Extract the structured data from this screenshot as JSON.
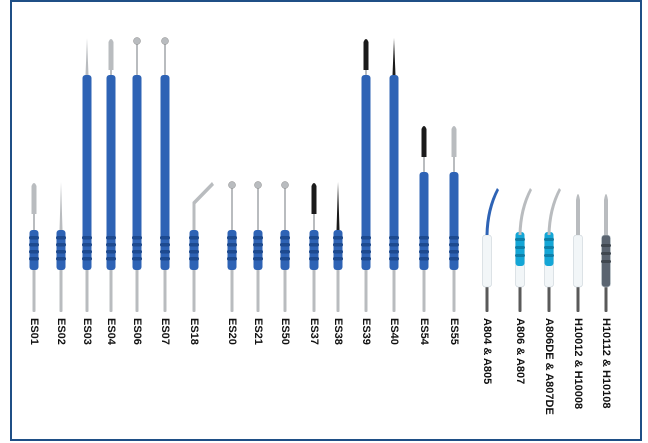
{
  "colors": {
    "border": "#1f4f86",
    "handle_blue": "#2e63b5",
    "handle_dark": "#1d4a8f",
    "shaft": "#b9bcbf",
    "tip_black": "#1b1b1b",
    "white_handle": "#f2f6f8",
    "cyan_handle": "#14a6d6",
    "gray_handle": "#5a6470"
  },
  "electrodes": [
    {
      "id": "ES01",
      "label": "ES01",
      "length": "short",
      "tip": "blade",
      "tip_color": "silver",
      "handle": "blue"
    },
    {
      "id": "ES02",
      "label": "ES02",
      "length": "short",
      "tip": "needle",
      "tip_color": "silver",
      "handle": "blue"
    },
    {
      "id": "ES03",
      "label": "ES03",
      "length": "long",
      "tip": "needle",
      "tip_color": "silver",
      "handle": "blue"
    },
    {
      "id": "ES04",
      "label": "ES04",
      "length": "long",
      "tip": "blade",
      "tip_color": "silver",
      "handle": "blue"
    },
    {
      "id": "ES06",
      "label": "ES06",
      "length": "long",
      "tip": "ball",
      "tip_color": "silver",
      "handle": "blue"
    },
    {
      "id": "ES07",
      "label": "ES07",
      "length": "long",
      "tip": "ball",
      "tip_color": "silver",
      "handle": "blue"
    },
    {
      "id": "ES18",
      "label": "ES18",
      "length": "short",
      "tip": "bent-blade",
      "tip_color": "silver",
      "handle": "blue"
    },
    {
      "id": "ES20",
      "label": "ES20",
      "length": "short",
      "tip": "ball",
      "tip_color": "silver",
      "handle": "blue"
    },
    {
      "id": "ES21",
      "label": "ES21",
      "length": "short",
      "tip": "ball",
      "tip_color": "silver",
      "handle": "blue"
    },
    {
      "id": "ES50",
      "label": "ES50",
      "length": "short",
      "tip": "ball",
      "tip_color": "silver",
      "handle": "blue"
    },
    {
      "id": "ES37",
      "label": "ES37",
      "length": "short",
      "tip": "blade",
      "tip_color": "black",
      "handle": "blue"
    },
    {
      "id": "ES38",
      "label": "ES38",
      "length": "short",
      "tip": "needle",
      "tip_color": "black",
      "handle": "blue"
    },
    {
      "id": "ES39",
      "label": "ES39",
      "length": "long",
      "tip": "blade",
      "tip_color": "black",
      "handle": "blue"
    },
    {
      "id": "ES40",
      "label": "ES40",
      "length": "long",
      "tip": "needle",
      "tip_color": "black",
      "handle": "blue"
    },
    {
      "id": "ES54",
      "label": "ES54",
      "length": "medium",
      "tip": "blade",
      "tip_color": "black",
      "handle": "blue"
    },
    {
      "id": "ES55",
      "label": "ES55",
      "length": "medium",
      "tip": "blade",
      "tip_color": "silver",
      "handle": "blue"
    },
    {
      "id": "A804",
      "label": "A804 & A805",
      "length": "hand",
      "tip": "curved",
      "tip_color": "blue",
      "handle": "white"
    },
    {
      "id": "A806",
      "label": "A806 & A807",
      "length": "hand",
      "tip": "curved",
      "tip_color": "silver",
      "handle": "cyan-white"
    },
    {
      "id": "A806DE",
      "label": "A806DE & A807DE",
      "length": "hand",
      "tip": "curved",
      "tip_color": "silver",
      "handle": "cyan-white"
    },
    {
      "id": "H10012",
      "label": "H10012 & H10008",
      "length": "hand",
      "tip": "blade",
      "tip_color": "silver",
      "handle": "white"
    },
    {
      "id": "H10112",
      "label": "H10112 & H10108",
      "length": "hand",
      "tip": "blade",
      "tip_color": "silver",
      "handle": "gray"
    }
  ]
}
